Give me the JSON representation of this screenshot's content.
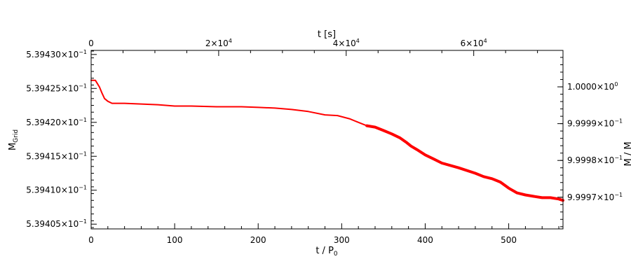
{
  "chart_data": {
    "type": "line",
    "xlabel": "t / P",
    "xlabel_sub": "0",
    "ylabel": "M",
    "ylabel_sub": "Grid",
    "top_xlabel": "t [s]",
    "xlim": [
      0,
      565
    ],
    "ylim": [
      5.394043,
      5.394306
    ],
    "x_ticks": [
      {
        "value": 0,
        "label": "0"
      },
      {
        "value": 100,
        "label": "100"
      },
      {
        "value": 200,
        "label": "200"
      },
      {
        "value": 300,
        "label": "300"
      },
      {
        "value": 400,
        "label": "400"
      },
      {
        "value": 500,
        "label": "500"
      }
    ],
    "top_xlim": [
      0,
      74000
    ],
    "top_x_ticks": [
      {
        "value": 0,
        "mant": "0",
        "exp": ""
      },
      {
        "value": 20000,
        "mant": "2×10",
        "exp": "4"
      },
      {
        "value": 40000,
        "mant": "4×10",
        "exp": "4"
      },
      {
        "value": 60000,
        "mant": "6×10",
        "exp": "4"
      }
    ],
    "y_ticks": [
      {
        "value": 5.39405,
        "mant": "5.39405×10",
        "exp": "−1"
      },
      {
        "value": 5.3941,
        "mant": "5.39410×10",
        "exp": "−1"
      },
      {
        "value": 5.39415,
        "mant": "5.39415×10",
        "exp": "−1"
      },
      {
        "value": 5.3942,
        "mant": "5.39420×10",
        "exp": "−1"
      },
      {
        "value": 5.39425,
        "mant": "5.39425×10",
        "exp": "−1"
      },
      {
        "value": 5.3943,
        "mant": "5.39430×10",
        "exp": "−1"
      }
    ],
    "right_ylim": [
      0.9999614,
      1.0000099
    ],
    "right_y_ticks": [
      {
        "value": 0.99997,
        "mant": "9.9997×10",
        "exp": "−1"
      },
      {
        "value": 0.99998,
        "mant": "9.9998×10",
        "exp": "−1"
      },
      {
        "value": 0.99999,
        "mant": "9.9999×10",
        "exp": "−1"
      },
      {
        "value": 1.0,
        "mant": "1.0000×10",
        "exp": "0"
      }
    ],
    "right_ylabel": "M / M",
    "series": [
      {
        "color": "#ff0000",
        "x": [
          0,
          5,
          10,
          13,
          16,
          20,
          25,
          30,
          40,
          60,
          80,
          100,
          120,
          150,
          180,
          200,
          220,
          240,
          260,
          280,
          295,
          310,
          320,
          330,
          340,
          350,
          360,
          370,
          378,
          383,
          390,
          400,
          410,
          420,
          440,
          460,
          470,
          480,
          490,
          500,
          510,
          520,
          530,
          540,
          550,
          560,
          565
        ],
        "y": [
          5.394262,
          5.394262,
          5.394252,
          5.394243,
          5.394235,
          5.394231,
          5.394228,
          5.394228,
          5.394228,
          5.394227,
          5.394226,
          5.394224,
          5.394224,
          5.394223,
          5.394223,
          5.394222,
          5.394221,
          5.394219,
          5.394216,
          5.394211,
          5.39421,
          5.394205,
          5.3942,
          5.394195,
          5.394193,
          5.394188,
          5.394183,
          5.394177,
          5.39417,
          5.394165,
          5.39416,
          5.394152,
          5.394146,
          5.39414,
          5.394133,
          5.394125,
          5.39412,
          5.394117,
          5.394112,
          5.394103,
          5.394096,
          5.394093,
          5.394091,
          5.394089,
          5.394089,
          5.394087,
          5.394085
        ]
      }
    ]
  }
}
